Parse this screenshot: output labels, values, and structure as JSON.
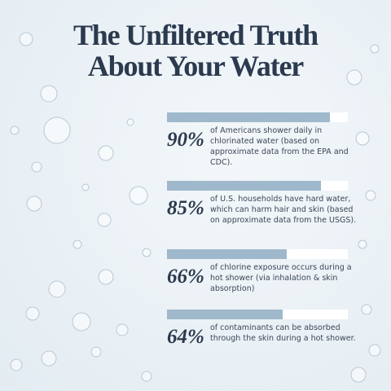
{
  "chart_data": {
    "type": "bar",
    "orientation": "horizontal",
    "title": "The Unfiltered Truth About Your Water",
    "categories": [
      "of Americans shower daily in chlorinated water (based on approximate data from the EPA and CDC).",
      "of U.S. households have hard water, which can harm hair and skin (based on approximate data from the USGS).",
      "of chlorine exposure occurs during a hot shower (via inhalation & skin absorption)",
      "of contaminants can be absorbed through the skin during a hot shower."
    ],
    "values": [
      90,
      85,
      66,
      64
    ],
    "value_labels": [
      "90%",
      "85%",
      "66%",
      "64%"
    ],
    "xlim": [
      0,
      100
    ],
    "color": "#9fb8cb",
    "track_color": "#ffffff",
    "text_color": "#2b3a4e"
  }
}
